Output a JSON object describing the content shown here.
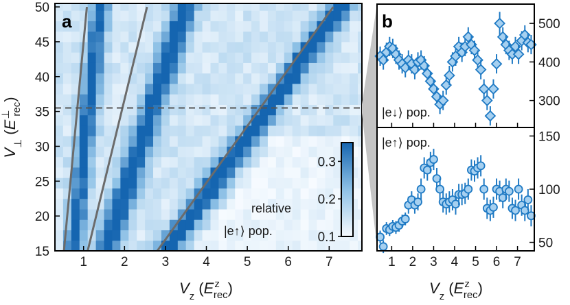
{
  "panel_a_label": "a",
  "panel_b_label": "b",
  "colorbar_text_1": "relative",
  "colorbar_text_2": "|e↑⟩ pop.",
  "b_top_label": "|e↓⟩ pop.",
  "b_bottom_label": "|e↑⟩ pop.",
  "colors": {
    "marker_fill": "#a6d0f0",
    "marker_edge": "#1f7ac4",
    "line": "#6b6b6b",
    "heat_max": "#1565b0"
  },
  "chart_data": [
    {
      "type": "heatmap",
      "panel": "a",
      "xlabel_base": "V",
      "xlabel_sub": "z",
      "xlabel_unit_base": "E",
      "xlabel_unit_sub": "rec",
      "xlabel_unit_sup": "z",
      "ylabel_base": "V",
      "ylabel_sub": "⊥",
      "ylabel_unit_base": "E",
      "ylabel_unit_sub": "rec",
      "ylabel_unit_sup": "⊥",
      "xlim": [
        0.3,
        7.8
      ],
      "ylim": [
        15,
        50.5
      ],
      "xticks": [
        1,
        2,
        3,
        4,
        5,
        6,
        7
      ],
      "yticks": [
        15,
        20,
        25,
        30,
        35,
        40,
        45,
        50
      ],
      "dashed_line_y": 35.5,
      "colorbar": {
        "min": 0.1,
        "max": 0.35,
        "ticks": [
          0.1,
          0.2,
          0.3
        ]
      },
      "grid": {
        "x_start": 0.3,
        "dx": 0.2,
        "nx": 38,
        "y_start": 15,
        "dy": 1.5,
        "ny": 24
      },
      "ridges": [
        {
          "x0": 0.75,
          "slope": 0.0185,
          "width": 0.22,
          "amp": 0.22
        },
        {
          "x0": 1.55,
          "slope": 0.055,
          "width": 0.3,
          "amp": 0.24
        },
        {
          "x0": 3.0,
          "slope": 0.122,
          "width": 0.32,
          "amp": 0.26
        }
      ],
      "overlay_lines": [
        {
          "x_at_15": 0.52,
          "x_at_50": 1.08
        },
        {
          "x_at_15": 1.1,
          "x_at_50": 2.55
        },
        {
          "x_at_15": 2.8,
          "x_at_50": 7.1
        }
      ]
    },
    {
      "type": "scatter",
      "panel": "b-top",
      "ylim": [
        230,
        550
      ],
      "yticks": [
        300,
        400,
        500
      ],
      "x": [
        0.45,
        0.6,
        0.75,
        0.9,
        1.05,
        1.2,
        1.35,
        1.5,
        1.65,
        1.8,
        1.95,
        2.1,
        2.25,
        2.4,
        2.55,
        2.7,
        2.85,
        3.0,
        3.15,
        3.3,
        3.45,
        3.6,
        3.75,
        3.9,
        4.05,
        4.2,
        4.35,
        4.5,
        4.65,
        4.8,
        4.95,
        5.1,
        5.25,
        5.4,
        5.55,
        5.7,
        5.85,
        6.0,
        6.15,
        6.3,
        6.45,
        6.6,
        6.75,
        6.9,
        7.05,
        7.2,
        7.35,
        7.5,
        7.65
      ],
      "y": [
        415,
        405,
        425,
        440,
        435,
        420,
        405,
        395,
        385,
        405,
        395,
        380,
        400,
        405,
        390,
        370,
        350,
        330,
        310,
        290,
        300,
        340,
        365,
        400,
        415,
        440,
        425,
        440,
        465,
        445,
        430,
        405,
        380,
        330,
        300,
        260,
        330,
        395,
        500,
        465,
        445,
        430,
        420,
        440,
        420,
        455,
        470,
        450,
        445
      ],
      "err": [
        25,
        25,
        25,
        25,
        25,
        25,
        25,
        25,
        25,
        25,
        25,
        25,
        25,
        25,
        25,
        25,
        25,
        25,
        25,
        25,
        25,
        25,
        25,
        25,
        25,
        25,
        25,
        25,
        25,
        25,
        25,
        25,
        25,
        25,
        25,
        25,
        25,
        25,
        30,
        25,
        25,
        25,
        25,
        25,
        25,
        25,
        25,
        25,
        25
      ]
    },
    {
      "type": "scatter",
      "panel": "b-bottom",
      "xlabel_base": "V",
      "xlabel_sub": "z",
      "xlabel_unit_base": "E",
      "xlabel_unit_sub": "rec",
      "xlabel_unit_sup": "z",
      "xlim": [
        0.3,
        7.8
      ],
      "xticks": [
        1,
        2,
        3,
        4,
        5,
        6,
        7
      ],
      "ylim": [
        42,
        158
      ],
      "yticks": [
        50,
        100,
        150
      ],
      "x": [
        0.45,
        0.6,
        0.75,
        0.9,
        1.05,
        1.2,
        1.35,
        1.5,
        1.65,
        1.8,
        1.95,
        2.1,
        2.25,
        2.4,
        2.55,
        2.7,
        2.85,
        3.0,
        3.15,
        3.3,
        3.45,
        3.6,
        3.75,
        3.9,
        4.05,
        4.2,
        4.35,
        4.5,
        4.65,
        4.8,
        4.95,
        5.1,
        5.25,
        5.4,
        5.55,
        5.7,
        5.85,
        6.0,
        6.15,
        6.3,
        6.45,
        6.6,
        6.75,
        6.9,
        7.05,
        7.2,
        7.35,
        7.5,
        7.65
      ],
      "y": [
        55,
        46,
        63,
        62,
        65,
        64,
        66,
        70,
        72,
        85,
        90,
        85,
        88,
        100,
        120,
        118,
        125,
        128,
        110,
        100,
        88,
        86,
        88,
        90,
        86,
        95,
        95,
        96,
        100,
        118,
        117,
        120,
        122,
        100,
        82,
        80,
        83,
        100,
        98,
        92,
        100,
        98,
        82,
        80,
        100,
        85,
        80,
        90,
        75
      ],
      "err": [
        6,
        6,
        6,
        6,
        6,
        6,
        6,
        6,
        6,
        8,
        8,
        8,
        8,
        10,
        10,
        10,
        10,
        10,
        10,
        10,
        10,
        10,
        10,
        10,
        10,
        10,
        10,
        10,
        10,
        10,
        10,
        10,
        10,
        10,
        10,
        10,
        10,
        10,
        10,
        10,
        10,
        10,
        10,
        10,
        10,
        10,
        10,
        10,
        10
      ]
    }
  ]
}
